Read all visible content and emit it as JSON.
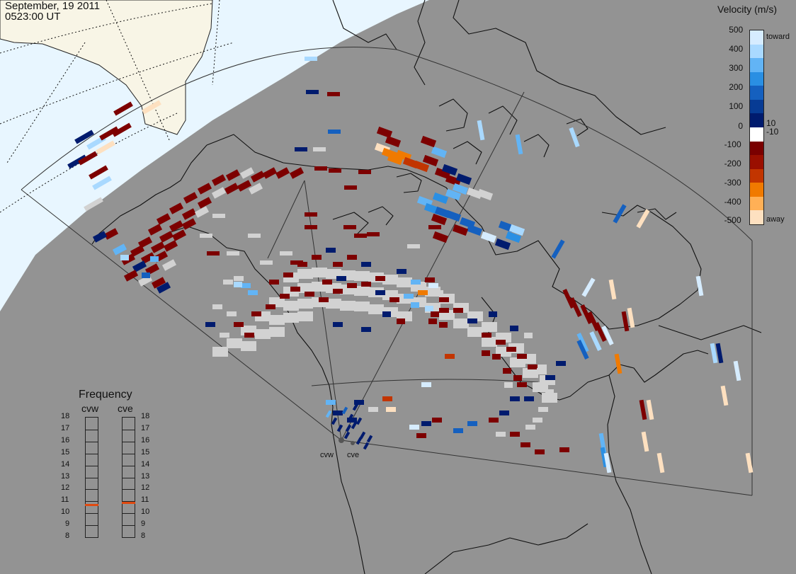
{
  "header": {
    "date": "September, 19 2011",
    "time": "0523:00 UT"
  },
  "velocity_scale": {
    "title": "Velocity (m/s)",
    "toward_label": "toward",
    "away_label": "away",
    "ticks": [
      "500",
      "400",
      "300",
      "200",
      "100",
      "10",
      "0",
      "-10",
      "-100",
      "-200",
      "-300",
      "-400",
      "-500"
    ],
    "colors": [
      "#d6ecff",
      "#a9d9ff",
      "#62b4f5",
      "#2a8fe3",
      "#1560bf",
      "#073b94",
      "#001b6e",
      "#ffffff",
      "#7a0000",
      "#9a0f00",
      "#c23500",
      "#f07a00",
      "#ffb056",
      "#fde0c0"
    ]
  },
  "frequency": {
    "title": "Frequency",
    "channels": [
      {
        "name": "cvw",
        "value_mhz": 10.7
      },
      {
        "name": "cve",
        "value_mhz": 10.9
      }
    ],
    "scale": [
      "18",
      "17",
      "16",
      "15",
      "14",
      "13",
      "12",
      "11",
      "10",
      "9",
      "8"
    ],
    "marker_color": "#e04a10"
  },
  "stations": [
    "cvw",
    "cve"
  ],
  "colors": {
    "background": "#939393",
    "sunlit_area": "#e8f6ff",
    "land_sunlit": "#f8f5e6",
    "ground_scatter": "#d2d2d2"
  }
}
